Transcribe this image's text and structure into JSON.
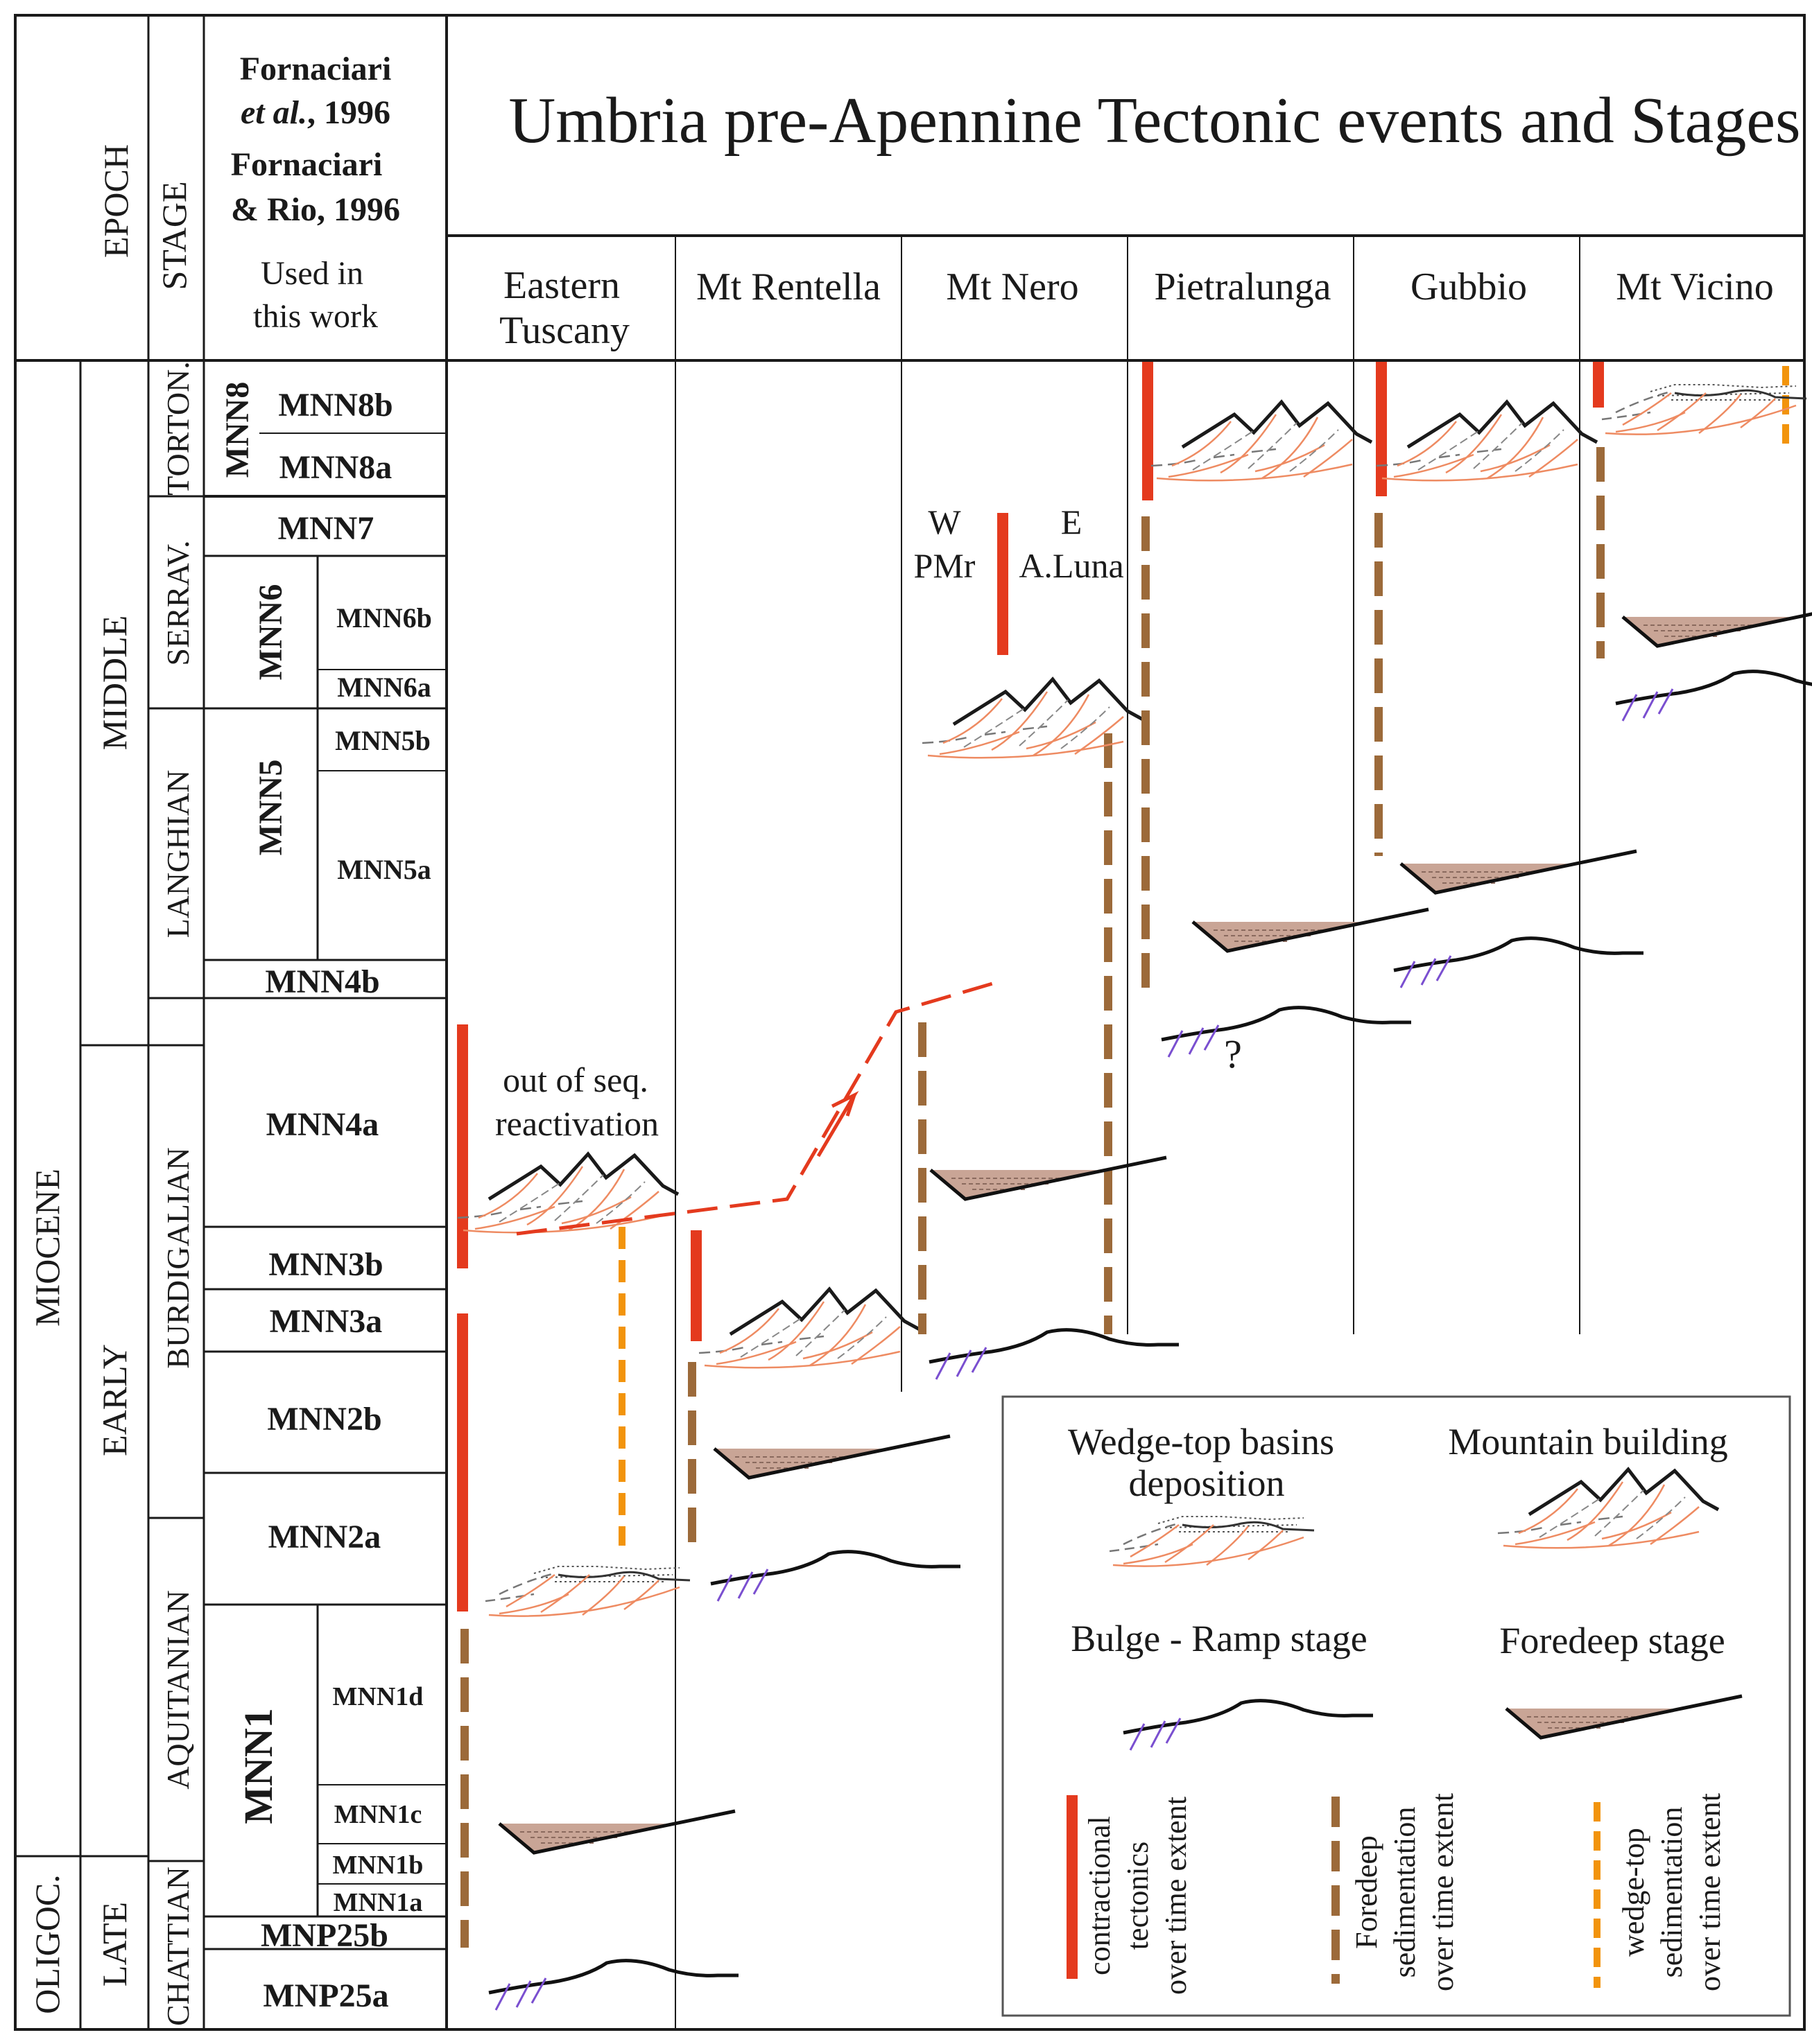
{
  "title": "Umbria pre-Apennine Tectonic events and Stages",
  "header": {
    "epoch": "EPOCH",
    "stage": "STAGE",
    "ref1": "Fornaciari",
    "ref2_italic": "et al.",
    "ref2_rest": ", 1996",
    "ref3": "Fornaciari",
    "ref4": "& Rio, 1996",
    "used1": "Used in",
    "used2": "this work"
  },
  "columns": [
    "Eastern Tuscany",
    "Mt Rentella",
    "Mt Nero",
    "Pietralunga",
    "Gubbio",
    "Mt Vicino"
  ],
  "epochs": {
    "oligocene": "OLIGOC.",
    "miocene": "MIOCENE"
  },
  "subepochs": {
    "late": "LATE",
    "early": "EARLY",
    "middle": "MIDDLE",
    "late_ol": "LATE"
  },
  "stages": {
    "chattian": "CHATTIAN",
    "aquitanian": "AQUITANIAN",
    "burdigalian": "BURDIGALIAN",
    "langhian": "LANGHIAN",
    "serravallian": "SERRAV.",
    "tortonian": "TORTON."
  },
  "zones": {
    "mnn8": "MNN8",
    "mnn8b": "MNN8b",
    "mnn8a": "MNN8a",
    "mnn7": "MNN7",
    "mnn6": "MNN6",
    "mnn6b": "MNN6b",
    "mnn6a": "MNN6a",
    "mnn5": "MNN5",
    "mnn5b": "MNN5b",
    "mnn5a": "MNN5a",
    "mnn4b": "MNN4b",
    "mnn4a": "MNN4a",
    "mnn3b": "MNN3b",
    "mnn3a": "MNN3a",
    "mnn2b": "MNN2b",
    "mnn2a": "MNN2a",
    "mnn1": "MNN1",
    "mnn1d": "MNN1d",
    "mnn1c": "MNN1c",
    "mnn1b": "MNN1b",
    "mnn1a": "MNN1a",
    "mnp25b": "MNP25b",
    "mnp25a": "MNP25a"
  },
  "annotations": {
    "oos1": "out of seq.",
    "oos2": "reactivation",
    "w": "W",
    "e": "E",
    "pmr": "PMr",
    "aluna": "A.Luna",
    "question": "?"
  },
  "legend": {
    "wedge1": "Wedge-top basins",
    "wedge2": "deposition",
    "mountain": "Mountain building",
    "bulge": "Bulge - Ramp  stage",
    "foredeep": "Foredeep stage",
    "contr1": "contractional",
    "contr2": "tectonics",
    "contr3": "over time extent",
    "fore1": "Foredeep",
    "fore2": "sedimentation",
    "fore3": "over time extent",
    "wt1": "wedge-top",
    "wt2": "sedimentation",
    "wt3": "over time extent"
  },
  "colors": {
    "contractional": "#e43a1e",
    "foredeep": "#9c6a3a",
    "wedge_top": "#f2940c",
    "thrust_lines": "#ee8b62",
    "basin_fill": "#c9a596",
    "bulge_faults": "#7a4fd0"
  }
}
